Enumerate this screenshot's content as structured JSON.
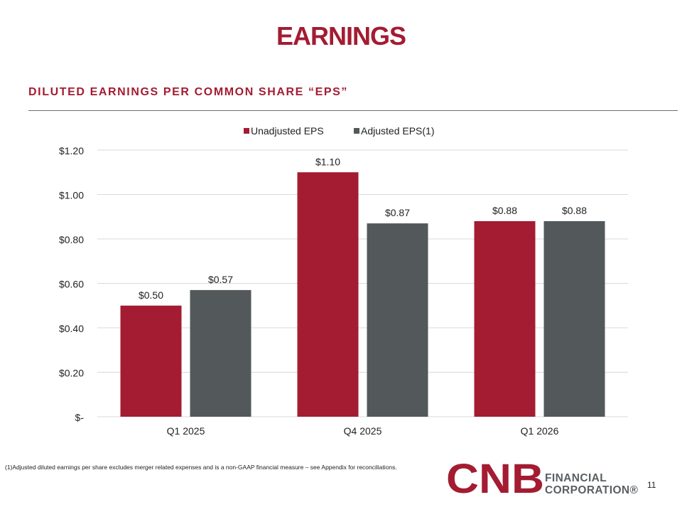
{
  "page": {
    "title": "EARNINGS",
    "subtitle": "DILUTED EARNINGS PER COMMON SHARE “EPS”",
    "footnote": "(1)Adjusted diluted earnings per share excludes merger related expenses and is a non-GAAP financial measure – see Appendix for reconciliations.",
    "page_number": "11"
  },
  "logo": {
    "mark_text": "CNB",
    "line1": "FINANCIAL",
    "line2": "CORPORATION®"
  },
  "colors": {
    "brand_red": "#a31c32",
    "series_gray": "#53585b",
    "grid": "#d9d9d9"
  },
  "chart_data": {
    "type": "bar",
    "categories": [
      "Q1 2025",
      "Q4 2025",
      "Q1 2026"
    ],
    "series": [
      {
        "name": "Unadjusted EPS",
        "color": "#a31c32",
        "values": [
          0.5,
          1.1,
          0.88
        ],
        "labels": [
          "$0.50",
          "$1.10",
          "$0.88"
        ]
      },
      {
        "name": "Adjusted EPS(1)",
        "color": "#53585b",
        "values": [
          0.57,
          0.87,
          0.88
        ],
        "labels": [
          "$0.57",
          "$0.87",
          "$0.88"
        ]
      }
    ],
    "ylim": [
      0,
      1.2
    ],
    "yticks": [
      0,
      0.2,
      0.4,
      0.6,
      0.8,
      1.0,
      1.2
    ],
    "ytick_labels": [
      "$-",
      "$0.20",
      "$0.40",
      "$0.60",
      "$0.80",
      "$1.00",
      "$1.20"
    ],
    "grid": true,
    "legend_position": "top-center"
  }
}
